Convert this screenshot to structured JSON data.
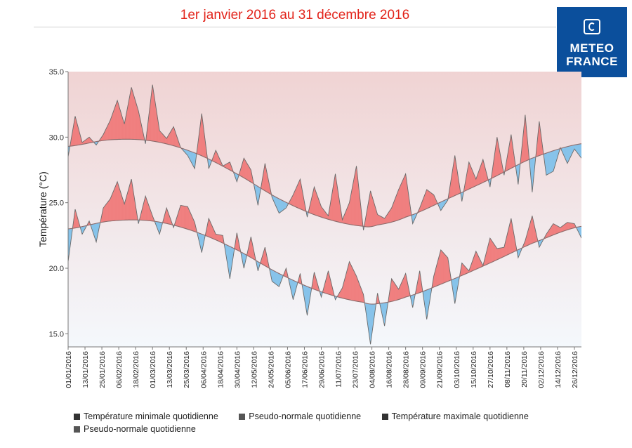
{
  "title": "1er janvier 2016 au 31 décembre 2016",
  "logo": {
    "line1": "METEO",
    "line2": "FRANCE"
  },
  "legend": [
    {
      "label": "Température minimale quotidienne",
      "color": "#333333"
    },
    {
      "label": "Pseudo-normale quotidienne",
      "color": "#555555"
    },
    {
      "label": "Température maximale quotidienne",
      "color": "#333333"
    },
    {
      "label": "Pseudo-normale quotidienne",
      "color": "#555555"
    }
  ],
  "colors": {
    "above": "#f07f7f",
    "below": "#86c3ea",
    "line": "#6b6b6b",
    "normal": "#8c6b6b",
    "bg_top": "#f0d3d3",
    "bg_bottom": "#f4f8fc"
  },
  "chart_data": {
    "type": "area",
    "ylabel": "Température (°C)",
    "ylim": [
      14,
      35
    ],
    "yticks": [
      15.0,
      20.0,
      25.0,
      30.0,
      35.0
    ],
    "x_labels": [
      "01/01/2016",
      "13/01/2016",
      "25/01/2016",
      "06/02/2016",
      "18/02/2016",
      "01/03/2016",
      "13/03/2016",
      "25/03/2016",
      "06/04/2016",
      "18/04/2016",
      "30/04/2016",
      "12/05/2016",
      "24/05/2016",
      "05/06/2016",
      "17/06/2016",
      "29/06/2016",
      "11/07/2016",
      "23/07/2016",
      "04/08/2016",
      "16/08/2016",
      "28/08/2016",
      "09/09/2016",
      "21/09/2016",
      "03/10/2016",
      "15/10/2016",
      "27/10/2016",
      "08/11/2016",
      "20/11/2016",
      "02/12/2016",
      "14/12/2016",
      "26/12/2016"
    ],
    "x_label_step_days": 12,
    "day_count": 366,
    "series": [
      {
        "name": "Température maximale quotidienne",
        "keypoints_day": [
          0,
          5,
          10,
          15,
          20,
          25,
          30,
          35,
          40,
          45,
          50,
          55,
          60,
          65,
          70,
          75,
          80,
          85,
          90,
          95,
          100,
          105,
          110,
          115,
          120,
          125,
          130,
          135,
          140,
          145,
          150,
          155,
          160,
          165,
          170,
          175,
          180,
          185,
          190,
          195,
          200,
          205,
          210,
          215,
          220,
          225,
          230,
          235,
          240,
          245,
          250,
          255,
          260,
          265,
          270,
          275,
          280,
          285,
          290,
          295,
          300,
          305,
          310,
          315,
          320,
          325,
          330,
          335,
          340,
          345,
          350,
          355,
          360,
          365
        ],
        "keypoints_value": [
          28.5,
          31.6,
          29.6,
          30.0,
          29.4,
          30.2,
          31.3,
          32.8,
          31.0,
          33.8,
          32.0,
          29.5,
          34.0,
          30.5,
          29.9,
          30.8,
          29.2,
          28.6,
          27.6,
          31.8,
          27.6,
          29.0,
          27.8,
          28.1,
          26.6,
          28.4,
          27.5,
          24.8,
          28.0,
          25.4,
          24.2,
          24.6,
          25.6,
          26.8,
          23.9,
          26.2,
          24.7,
          24.0,
          27.2,
          23.7,
          25.0,
          27.8,
          22.9,
          25.9,
          24.1,
          23.8,
          24.6,
          26.0,
          27.2,
          23.4,
          24.6,
          26.0,
          25.6,
          24.4,
          25.2,
          28.6,
          25.1,
          28.1,
          26.8,
          28.3,
          26.2,
          30.0,
          27.1,
          30.2,
          26.4,
          31.7,
          25.8,
          31.2,
          27.1,
          27.4,
          29.2,
          28.0,
          29.1,
          28.4
        ]
      },
      {
        "name": "Pseudo-normale quotidienne",
        "keypoints_day": [
          0,
          30,
          60,
          90,
          120,
          150,
          180,
          210,
          220,
          240,
          270,
          300,
          330,
          365
        ],
        "keypoints_value": [
          29.3,
          29.8,
          29.7,
          28.8,
          27.2,
          25.3,
          23.9,
          23.2,
          23.3,
          23.9,
          25.3,
          26.8,
          28.4,
          29.5
        ]
      },
      {
        "name": "Température minimale quotidienne",
        "keypoints_day": [
          0,
          5,
          10,
          15,
          20,
          25,
          30,
          35,
          40,
          45,
          50,
          55,
          60,
          65,
          70,
          75,
          80,
          85,
          90,
          95,
          100,
          105,
          110,
          115,
          120,
          125,
          130,
          135,
          140,
          145,
          150,
          155,
          160,
          165,
          170,
          175,
          180,
          185,
          190,
          195,
          200,
          205,
          210,
          215,
          220,
          225,
          230,
          235,
          240,
          245,
          250,
          255,
          260,
          265,
          270,
          275,
          280,
          285,
          290,
          295,
          300,
          305,
          310,
          315,
          320,
          325,
          330,
          335,
          340,
          345,
          350,
          355,
          360,
          365
        ],
        "keypoints_value": [
          20.5,
          24.5,
          22.6,
          23.6,
          22.0,
          24.6,
          25.3,
          26.6,
          24.9,
          26.8,
          23.4,
          25.5,
          24.0,
          22.6,
          24.6,
          23.1,
          24.8,
          24.7,
          23.5,
          21.2,
          23.8,
          22.6,
          22.5,
          19.2,
          22.7,
          20.0,
          22.4,
          19.8,
          21.6,
          19.0,
          18.6,
          20.0,
          17.6,
          19.6,
          16.4,
          19.7,
          17.8,
          19.8,
          17.6,
          18.5,
          20.5,
          19.4,
          18.0,
          14.2,
          18.1,
          15.6,
          19.2,
          18.4,
          19.6,
          17.0,
          19.8,
          16.1,
          19.4,
          21.4,
          20.8,
          17.3,
          20.4,
          19.8,
          21.3,
          20.2,
          22.3,
          21.5,
          21.6,
          23.8,
          20.8,
          22.1,
          24.0,
          21.6,
          22.6,
          23.4,
          23.1,
          23.5,
          23.4,
          22.3
        ]
      },
      {
        "name": "Pseudo-normale quotidienne",
        "keypoints_day": [
          0,
          30,
          60,
          90,
          120,
          150,
          180,
          210,
          220,
          240,
          270,
          300,
          330,
          365
        ],
        "keypoints_value": [
          23.0,
          23.6,
          23.6,
          22.8,
          21.4,
          19.6,
          18.2,
          17.4,
          17.3,
          17.8,
          19.0,
          20.4,
          21.9,
          23.2
        ]
      }
    ]
  }
}
